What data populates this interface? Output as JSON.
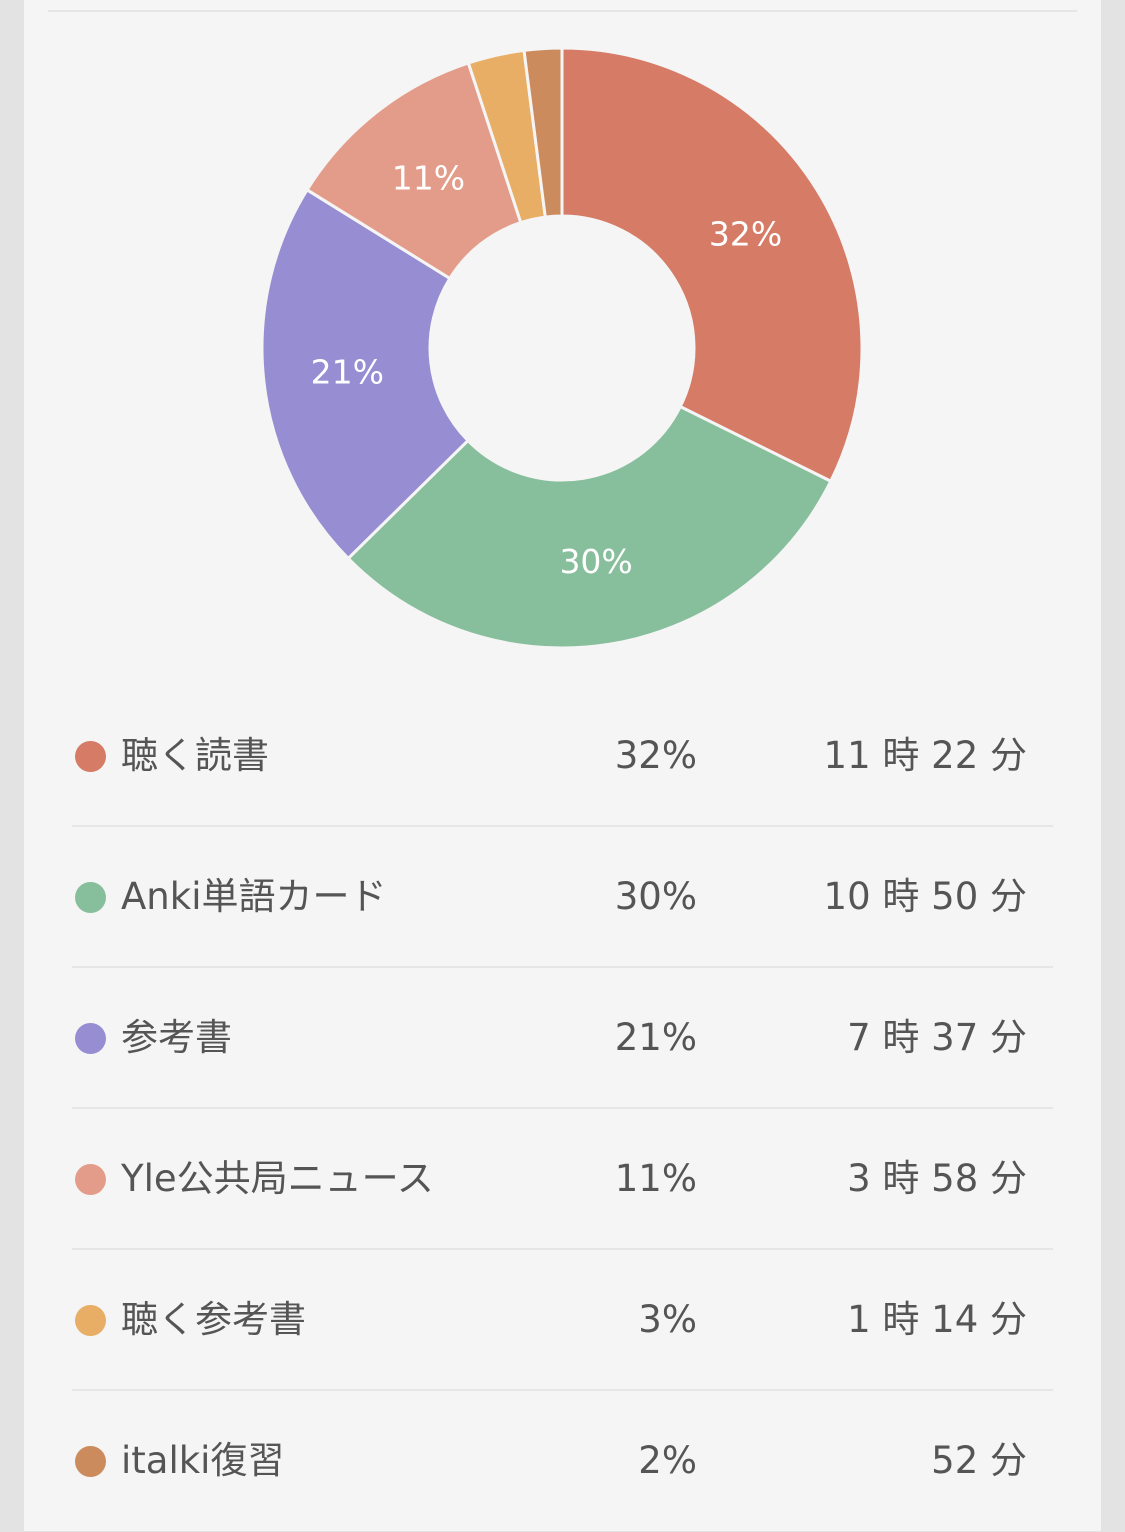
{
  "chart_data": {
    "type": "pie",
    "categories": [
      "聴く読書",
      "Anki単語カード",
      "参考書",
      "Yle公共局ニュース",
      "聴く参考書",
      "italki復習"
    ],
    "values": [
      32,
      30,
      21,
      11,
      3,
      2
    ],
    "slice_labels": [
      "32%",
      "30%",
      "21%",
      "11%",
      "",
      ""
    ],
    "colors": [
      "#d67b66",
      "#87be9c",
      "#968dd2",
      "#e49c8a",
      "#e8ae66",
      "#cc8b5d"
    ],
    "donut": true
  },
  "legend": {
    "items": [
      {
        "label": "聴く読書",
        "percent": "32%",
        "duration": "11 時 22 分",
        "color": "#d67b66"
      },
      {
        "label": "Anki単語カード",
        "percent": "30%",
        "duration": "10 時 50 分",
        "color": "#87be9c"
      },
      {
        "label": "参考書",
        "percent": "21%",
        "duration": "7 時 37 分",
        "color": "#968dd2"
      },
      {
        "label": "Yle公共局ニュース",
        "percent": "11%",
        "duration": "3 時 58 分",
        "color": "#e49c8a"
      },
      {
        "label": "聴く参考書",
        "percent": "3%",
        "duration": "1 時 14 分",
        "color": "#e8ae66"
      },
      {
        "label": "italki復習",
        "percent": "2%",
        "duration": "52 分",
        "color": "#cc8b5d"
      }
    ]
  }
}
